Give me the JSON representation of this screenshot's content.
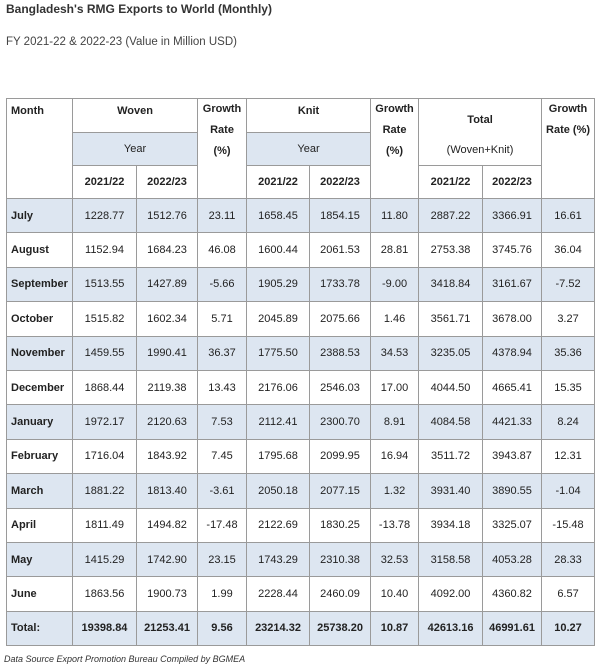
{
  "header": {
    "title": "Bangladesh's RMG Exports to World (Monthly)",
    "subtitle": "FY 2021-22 & 2022-23 (Value in Million USD)"
  },
  "table": {
    "month": "Month",
    "woven": "Woven",
    "knit": "Knit",
    "total": "Total",
    "total_sub": "(Woven+Knit)",
    "growth": "Growth Rate (%)",
    "year": "Year",
    "years": [
      "2021/22",
      "2022/23"
    ],
    "rows": [
      [
        "July",
        "1228.77",
        "1512.76",
        "23.11",
        "1658.45",
        "1854.15",
        "11.80",
        "2887.22",
        "3366.91",
        "16.61"
      ],
      [
        "August",
        "1152.94",
        "1684.23",
        "46.08",
        "1600.44",
        "2061.53",
        "28.81",
        "2753.38",
        "3745.76",
        "36.04"
      ],
      [
        "September",
        "1513.55",
        "1427.89",
        "-5.66",
        "1905.29",
        "1733.78",
        "-9.00",
        "3418.84",
        "3161.67",
        "-7.52"
      ],
      [
        "October",
        "1515.82",
        "1602.34",
        "5.71",
        "2045.89",
        "2075.66",
        "1.46",
        "3561.71",
        "3678.00",
        "3.27"
      ],
      [
        "November",
        "1459.55",
        "1990.41",
        "36.37",
        "1775.50",
        "2388.53",
        "34.53",
        "3235.05",
        "4378.94",
        "35.36"
      ],
      [
        "December",
        "1868.44",
        "2119.38",
        "13.43",
        "2176.06",
        "2546.03",
        "17.00",
        "4044.50",
        "4665.41",
        "15.35"
      ],
      [
        "January",
        "1972.17",
        "2120.63",
        "7.53",
        "2112.41",
        "2300.70",
        "8.91",
        "4084.58",
        "4421.33",
        "8.24"
      ],
      [
        "February",
        "1716.04",
        "1843.92",
        "7.45",
        "1795.68",
        "2099.95",
        "16.94",
        "3511.72",
        "3943.87",
        "12.31"
      ],
      [
        "March",
        "1881.22",
        "1813.40",
        "-3.61",
        "2050.18",
        "2077.15",
        "1.32",
        "3931.40",
        "3890.55",
        "-1.04"
      ],
      [
        "April",
        "1811.49",
        "1494.82",
        "-17.48",
        "2122.69",
        "1830.25",
        "-13.78",
        "3934.18",
        "3325.07",
        "-15.48"
      ],
      [
        "May",
        "1415.29",
        "1742.90",
        "23.15",
        "1743.29",
        "2310.38",
        "32.53",
        "3158.58",
        "4053.28",
        "28.33"
      ],
      [
        "June",
        "1863.56",
        "1900.73",
        "1.99",
        "2228.44",
        "2460.09",
        "10.40",
        "4092.00",
        "4360.82",
        "6.57"
      ]
    ],
    "total_row": [
      "Total:",
      "19398.84",
      "21253.41",
      "9.56",
      "23214.32",
      "25738.20",
      "10.87",
      "42613.16",
      "46991.61",
      "10.27"
    ]
  },
  "footer": "Data Source Export Promotion Bureau Compiled by BGMEA"
}
